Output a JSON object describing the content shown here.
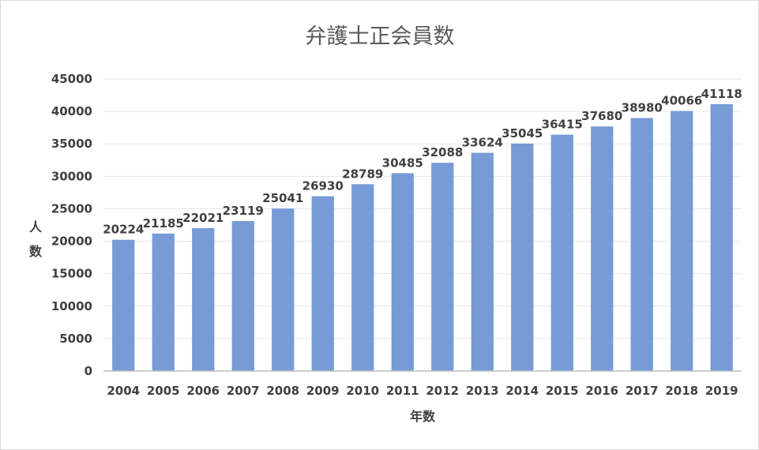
{
  "chart_data": {
    "type": "bar",
    "title": "弁護士正会員数",
    "xlabel": "年数",
    "ylabel": "人数",
    "categories": [
      "2004",
      "2005",
      "2006",
      "2007",
      "2008",
      "2009",
      "2010",
      "2011",
      "2012",
      "2013",
      "2014",
      "2015",
      "2016",
      "2017",
      "2018",
      "2019"
    ],
    "values": [
      20224,
      21185,
      22021,
      23119,
      25041,
      26930,
      28789,
      30485,
      32088,
      33624,
      35045,
      36415,
      37680,
      38980,
      40066,
      41118
    ],
    "ylim": [
      0,
      45000
    ],
    "yticks": [
      0,
      5000,
      10000,
      15000,
      20000,
      25000,
      30000,
      35000,
      40000,
      45000
    ],
    "grid": true,
    "data_labels": true,
    "bar_color": "#779bd6"
  }
}
